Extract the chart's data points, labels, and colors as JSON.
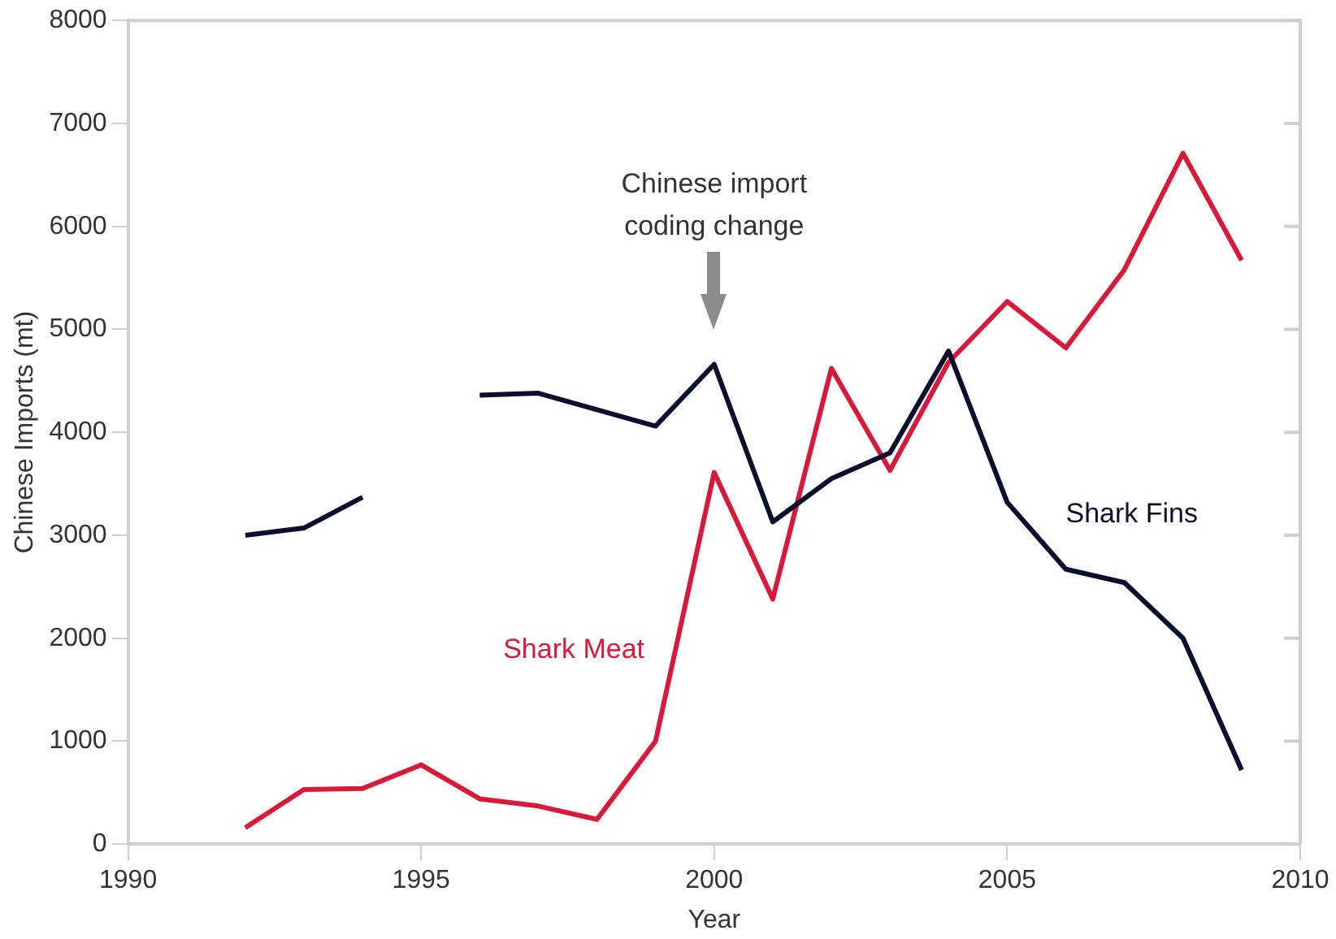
{
  "chart_data": {
    "type": "line",
    "xlabel": "Year",
    "ylabel": "Chinese Imports (mt)",
    "x": [
      1992,
      1993,
      1994,
      1995,
      1996,
      1997,
      1998,
      1999,
      2000,
      2001,
      2002,
      2003,
      2004,
      2005,
      2006,
      2007,
      2008,
      2009
    ],
    "series": [
      {
        "name": "Shark Fins",
        "color": "#0b0f2b",
        "values": [
          3000,
          3070,
          3370,
          null,
          4360,
          4380,
          4220,
          4060,
          4660,
          3130,
          3550,
          3800,
          4790,
          3320,
          2670,
          2540,
          2000,
          720
        ]
      },
      {
        "name": "Shark Meat",
        "color": "#d7193a",
        "values": [
          160,
          530,
          540,
          770,
          440,
          370,
          240,
          1000,
          3610,
          2380,
          4620,
          3630,
          4680,
          5270,
          4820,
          5580,
          6710,
          5670
        ]
      }
    ],
    "xlim": [
      1990,
      2010
    ],
    "xticks": [
      1990,
      1995,
      2000,
      2005,
      2010
    ],
    "ylim": [
      0,
      8000
    ],
    "yticks": [
      0,
      1000,
      2000,
      3000,
      4000,
      5000,
      6000,
      7000,
      8000
    ],
    "grid": false,
    "legend": false,
    "marker": "none",
    "line_style": "solid",
    "annotations": [
      "Chinese import coding change"
    ]
  }
}
